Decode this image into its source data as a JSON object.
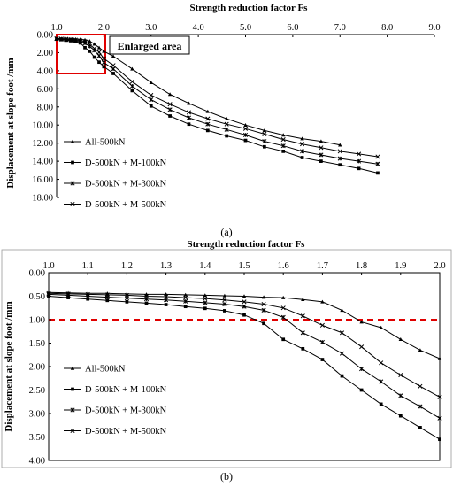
{
  "chart_data": [
    {
      "type": "line",
      "caption": "(a)",
      "xlabel": "Strength reduction factor Fs",
      "ylabel": "Displacement at slope foot /mm",
      "xlim": [
        1.0,
        9.0
      ],
      "ylim": [
        0,
        18
      ],
      "y_inverted": true,
      "x_axis_position": "top",
      "xticks": [
        "1.0",
        "2.0",
        "3.0",
        "4.0",
        "5.0",
        "6.0",
        "7.0",
        "8.0",
        "9.0"
      ],
      "yticks": [
        "0.00",
        "2.00",
        "4.00",
        "6.00",
        "8.00",
        "10.00",
        "12.00",
        "14.00",
        "16.00",
        "18.00"
      ],
      "annotation": "Enlarged area",
      "legend_position": "bottom-left",
      "series": [
        {
          "name": "All-500kN",
          "marker": "triangle",
          "x": [
            1.0,
            1.1,
            1.2,
            1.3,
            1.4,
            1.5,
            1.6,
            1.7,
            1.8,
            1.9,
            2.0,
            2.2,
            2.6,
            3.0,
            3.4,
            3.8,
            4.2,
            4.6,
            5.0,
            5.4,
            5.8,
            6.2,
            6.6,
            7.0
          ],
          "y": [
            0.42,
            0.44,
            0.46,
            0.48,
            0.5,
            0.53,
            0.58,
            0.72,
            1.05,
            1.45,
            1.85,
            2.4,
            3.8,
            5.3,
            6.6,
            7.6,
            8.5,
            9.3,
            10.0,
            10.6,
            11.1,
            11.5,
            11.8,
            12.2
          ]
        },
        {
          "name": "D-500kN + M-100kN",
          "marker": "square",
          "x": [
            1.0,
            1.1,
            1.2,
            1.3,
            1.4,
            1.5,
            1.6,
            1.7,
            1.8,
            1.9,
            2.0,
            2.2,
            2.6,
            3.0,
            3.4,
            3.8,
            4.2,
            4.6,
            5.0,
            5.4,
            5.8,
            6.2,
            6.6,
            7.0,
            7.4,
            7.8
          ],
          "y": [
            0.5,
            0.56,
            0.62,
            0.68,
            0.78,
            0.92,
            1.45,
            1.85,
            2.5,
            3.05,
            3.55,
            4.3,
            6.2,
            7.9,
            9.0,
            9.9,
            10.6,
            11.2,
            11.7,
            12.4,
            12.9,
            13.6,
            14.0,
            14.4,
            14.8,
            15.3
          ]
        },
        {
          "name": "D-500kN + M-300kN",
          "marker": "asterisk",
          "x": [
            1.0,
            1.1,
            1.2,
            1.3,
            1.4,
            1.5,
            1.6,
            1.7,
            1.8,
            1.9,
            2.0,
            2.2,
            2.6,
            3.0,
            3.4,
            3.8,
            4.2,
            4.6,
            5.0,
            5.4,
            5.8,
            6.2,
            6.6,
            7.0,
            7.4,
            7.8
          ],
          "y": [
            0.46,
            0.52,
            0.56,
            0.6,
            0.66,
            0.75,
            0.95,
            1.3,
            1.75,
            2.35,
            3.1,
            3.8,
            5.7,
            7.2,
            8.3,
            9.2,
            9.9,
            10.5,
            11.1,
            11.8,
            12.3,
            12.9,
            13.3,
            13.7,
            14.0,
            14.3
          ]
        },
        {
          "name": "D-500kN + M-500kN",
          "marker": "cross",
          "x": [
            1.0,
            1.1,
            1.2,
            1.3,
            1.4,
            1.5,
            1.6,
            1.7,
            1.8,
            1.9,
            2.0,
            2.2,
            2.6,
            3.0,
            3.4,
            3.8,
            4.2,
            4.6,
            5.0,
            5.4,
            5.8,
            6.2,
            6.6,
            7.0,
            7.4,
            7.8
          ],
          "y": [
            0.44,
            0.47,
            0.5,
            0.53,
            0.58,
            0.66,
            0.75,
            1.1,
            1.55,
            1.95,
            2.65,
            3.4,
            5.2,
            6.7,
            7.7,
            8.6,
            9.3,
            9.9,
            10.4,
            11.0,
            11.6,
            12.1,
            12.5,
            12.9,
            13.2,
            13.5
          ]
        }
      ]
    },
    {
      "type": "line",
      "caption": "(b)",
      "xlabel": "Strength reduction factor Fs",
      "ylabel": "Displacement at slope foot /mm",
      "xlim": [
        1.0,
        2.0
      ],
      "ylim": [
        0,
        4
      ],
      "y_inverted": true,
      "x_axis_position": "top",
      "xticks": [
        "1.0",
        "1.1",
        "1.2",
        "1.3",
        "1.4",
        "1.5",
        "1.6",
        "1.7",
        "1.8",
        "1.9",
        "2.0"
      ],
      "yticks": [
        "0.00",
        "0.50",
        "1.00",
        "1.50",
        "2.00",
        "2.50",
        "3.00",
        "3.50",
        "4.00"
      ],
      "reference_line_y": 1.0,
      "reference_line_color": "#e00000",
      "legend_position": "bottom-left",
      "series": [
        {
          "name": "All-500kN",
          "marker": "triangle",
          "x": [
            1.0,
            1.05,
            1.1,
            1.15,
            1.2,
            1.25,
            1.3,
            1.35,
            1.4,
            1.45,
            1.5,
            1.55,
            1.6,
            1.65,
            1.7,
            1.75,
            1.8,
            1.85,
            1.9,
            1.95,
            2.0
          ],
          "y": [
            0.42,
            0.43,
            0.44,
            0.44,
            0.45,
            0.46,
            0.46,
            0.47,
            0.48,
            0.49,
            0.5,
            0.52,
            0.53,
            0.57,
            0.62,
            0.8,
            1.05,
            1.17,
            1.42,
            1.65,
            1.83
          ]
        },
        {
          "name": "D-500kN + M-100kN",
          "marker": "square",
          "x": [
            1.0,
            1.05,
            1.1,
            1.15,
            1.2,
            1.25,
            1.3,
            1.35,
            1.4,
            1.45,
            1.5,
            1.55,
            1.6,
            1.65,
            1.7,
            1.75,
            1.8,
            1.85,
            1.9,
            1.95,
            2.0
          ],
          "y": [
            0.5,
            0.53,
            0.56,
            0.59,
            0.62,
            0.65,
            0.68,
            0.72,
            0.76,
            0.81,
            0.9,
            1.08,
            1.42,
            1.62,
            1.85,
            2.2,
            2.5,
            2.8,
            3.05,
            3.3,
            3.55
          ]
        },
        {
          "name": "D-500kN + M-300kN",
          "marker": "asterisk",
          "x": [
            1.0,
            1.05,
            1.1,
            1.15,
            1.2,
            1.25,
            1.3,
            1.35,
            1.4,
            1.45,
            1.5,
            1.55,
            1.6,
            1.65,
            1.7,
            1.75,
            1.8,
            1.85,
            1.9,
            1.95,
            2.0
          ],
          "y": [
            0.46,
            0.48,
            0.5,
            0.52,
            0.54,
            0.56,
            0.58,
            0.61,
            0.64,
            0.67,
            0.72,
            0.8,
            0.95,
            1.28,
            1.48,
            1.72,
            2.05,
            2.32,
            2.62,
            2.85,
            3.1
          ]
        },
        {
          "name": "D-500kN + M-500kN",
          "marker": "cross",
          "x": [
            1.0,
            1.05,
            1.1,
            1.15,
            1.2,
            1.25,
            1.3,
            1.35,
            1.4,
            1.45,
            1.5,
            1.55,
            1.6,
            1.65,
            1.7,
            1.75,
            1.8,
            1.85,
            1.9,
            1.95,
            2.0
          ],
          "y": [
            0.44,
            0.45,
            0.46,
            0.47,
            0.48,
            0.5,
            0.51,
            0.53,
            0.55,
            0.58,
            0.62,
            0.67,
            0.75,
            0.92,
            1.12,
            1.28,
            1.58,
            1.92,
            2.18,
            2.42,
            2.65
          ]
        }
      ]
    }
  ]
}
